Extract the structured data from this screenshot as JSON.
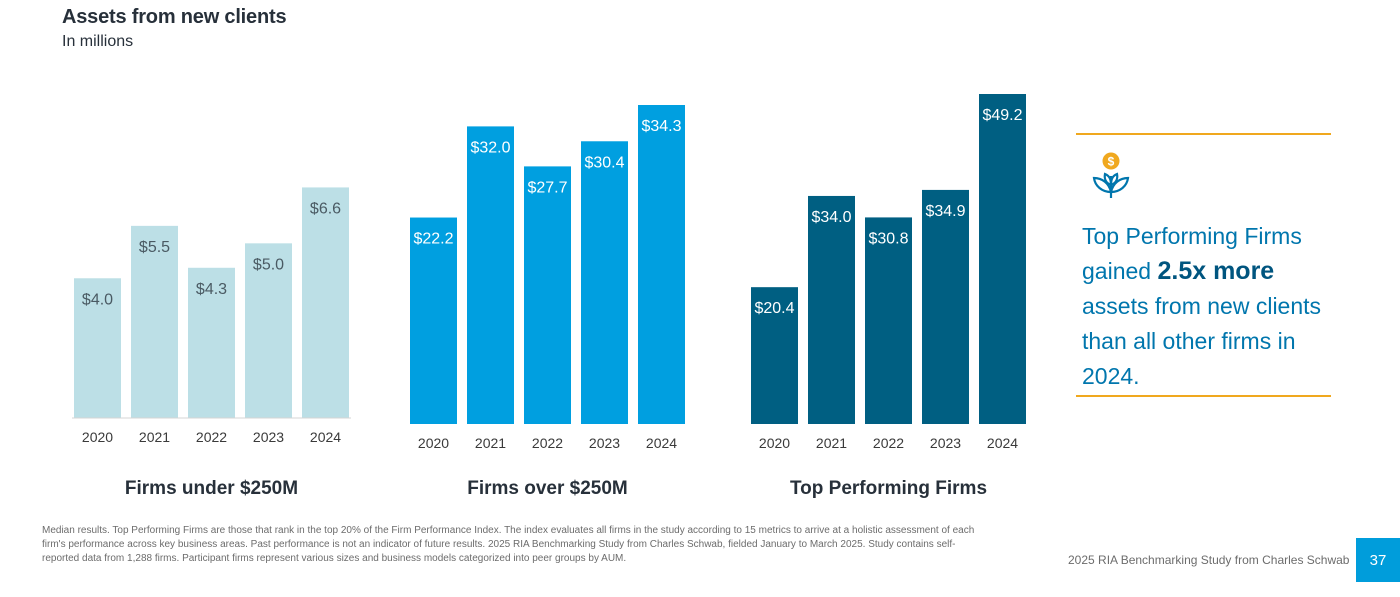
{
  "header": {
    "title": "Assets from new clients",
    "subtitle": "In millions"
  },
  "chart_data": [
    {
      "type": "bar",
      "title": "Firms under $250M",
      "categories": [
        "2020",
        "2021",
        "2022",
        "2023",
        "2024"
      ],
      "values": [
        4.0,
        5.5,
        4.3,
        5.0,
        6.6
      ],
      "labels": [
        "$4.0",
        "$5.5",
        "$4.3",
        "$5.0",
        "$6.6"
      ],
      "color": "#bcdfe6",
      "label_color": "#4a5a63",
      "ylim": [
        0,
        7.7
      ]
    },
    {
      "type": "bar",
      "title": "Firms over $250M",
      "categories": [
        "2020",
        "2021",
        "2022",
        "2023",
        "2024"
      ],
      "values": [
        22.2,
        32.0,
        27.7,
        30.4,
        34.3
      ],
      "labels": [
        "$22.2",
        "$32.0",
        "$27.7",
        "$30.4",
        "$34.3"
      ],
      "color": "#009fe0",
      "label_color": "#ffffff",
      "ylim": [
        0,
        34.3
      ]
    },
    {
      "type": "bar",
      "title": "Top Performing Firms",
      "categories": [
        "2020",
        "2021",
        "2022",
        "2023",
        "2024"
      ],
      "values": [
        20.4,
        34.0,
        30.8,
        34.9,
        49.2
      ],
      "labels": [
        "$20.4",
        "$34.0",
        "$30.8",
        "$34.9",
        "$49.2"
      ],
      "color": "#005f82",
      "label_color": "#ffffff",
      "ylim": [
        0,
        49.2
      ]
    }
  ],
  "callout": {
    "icon": "plant-dollar-icon",
    "text_before": "Top Performing Firms gained ",
    "highlight": "2.5x more",
    "text_after": " assets from new clients than all other firms in 2024.",
    "accent_color": "#f0a81e"
  },
  "footer": {
    "footnote": "Median results. Top Performing Firms are those that rank in the top 20% of the Firm Performance Index. The index evaluates all firms in the study according to 15 metrics to arrive at a holistic assessment of each firm's performance across key business areas. Past performance is not an indicator of future results. 2025 RIA Benchmarking Study from Charles Schwab, fielded January to March 2025. Study contains self-reported data from 1,288 firms. Participant firms represent various sizes and business models categorized into peer groups by AUM.",
    "source": "2025 RIA Benchmarking Study from Charles Schwab",
    "page_number": "37"
  }
}
